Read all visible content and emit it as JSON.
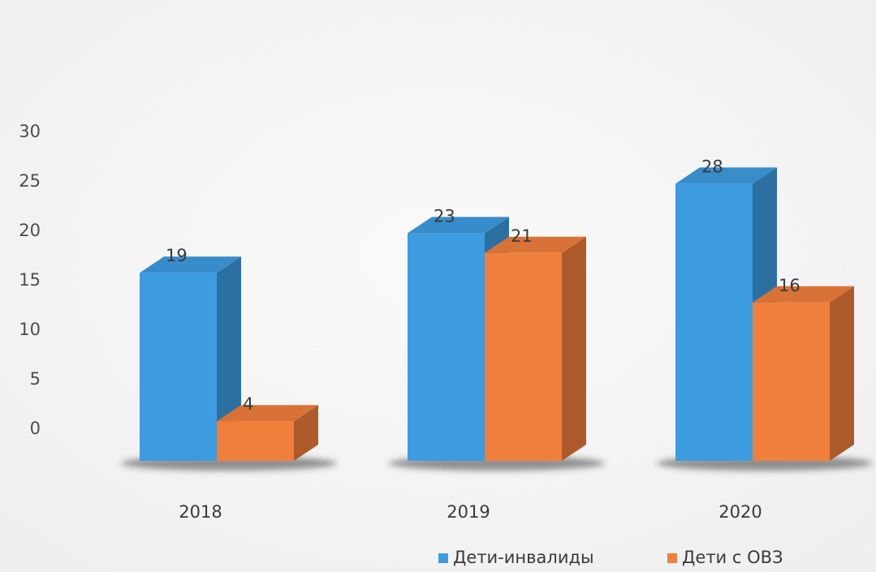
{
  "chart_data": {
    "type": "bar",
    "categories": [
      "2018",
      "2019",
      "2020"
    ],
    "series": [
      {
        "name": "Дети-инвалиды",
        "values": [
          19,
          23,
          28
        ],
        "color": "#3d9be0"
      },
      {
        "name": "Дети с ОВЗ",
        "values": [
          4,
          21,
          16
        ],
        "color": "#f07f3c"
      }
    ],
    "ylim": [
      0,
      30
    ],
    "yticks": [
      0,
      5,
      10,
      15,
      20,
      25,
      30
    ],
    "data_labels": true,
    "legend": "bottom-right",
    "style": "3d-clustered-column",
    "grid": false
  }
}
